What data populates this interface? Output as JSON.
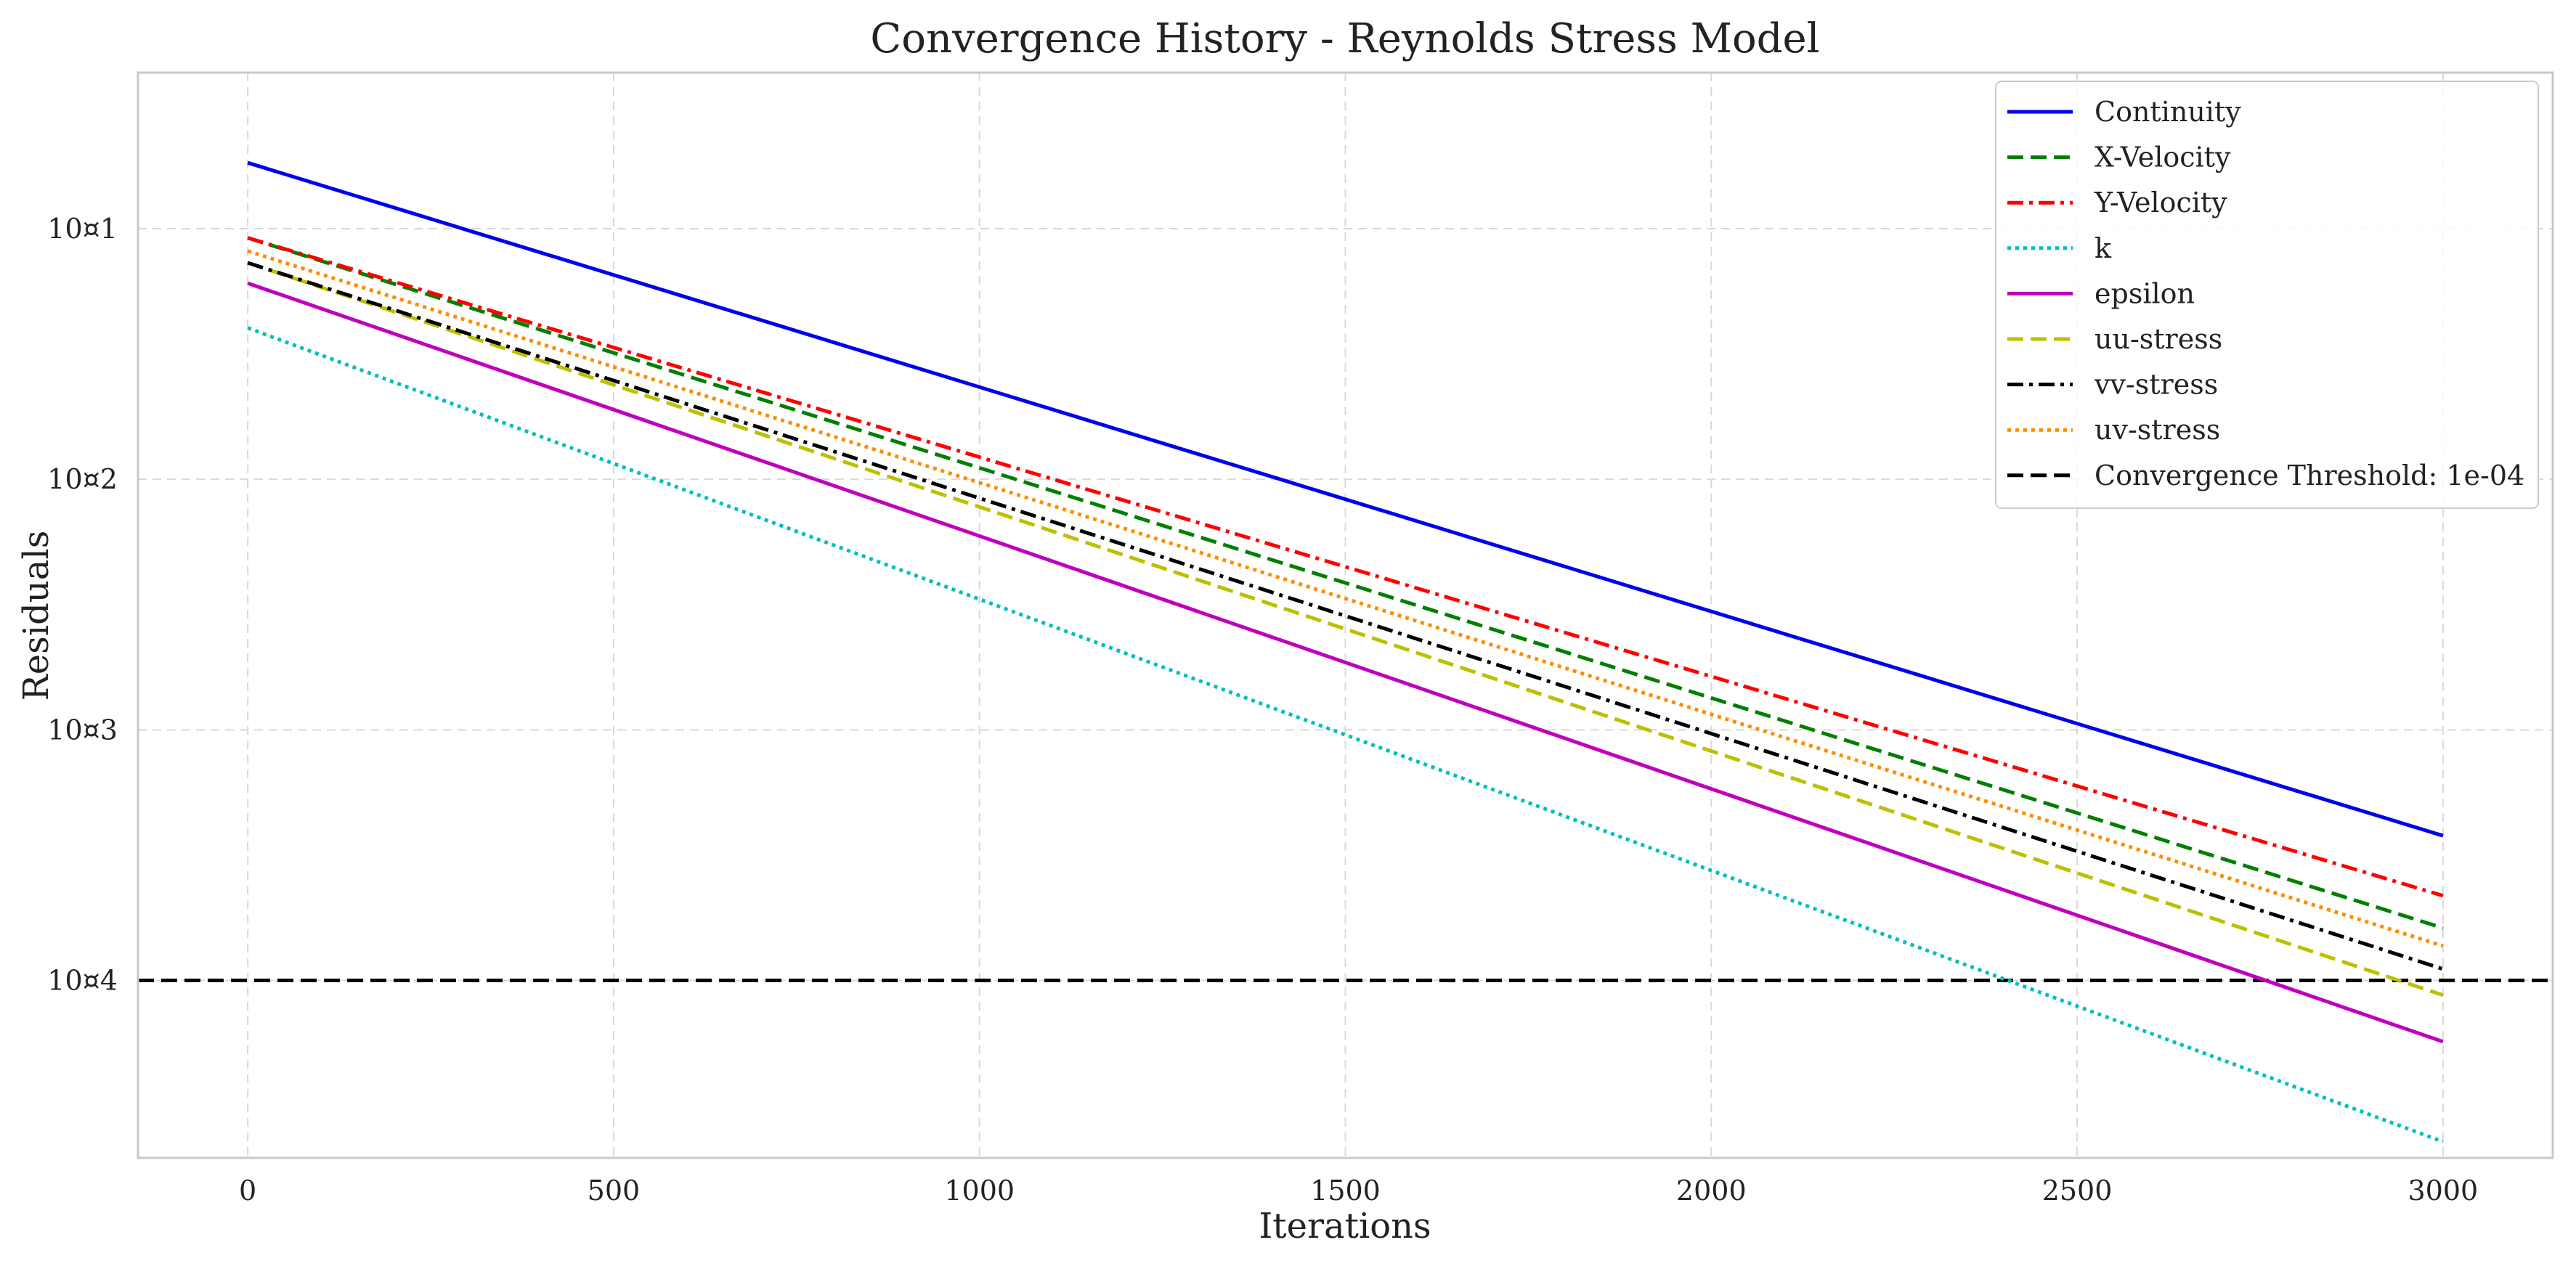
{
  "chart_data": {
    "type": "line",
    "title": "Convergence History - Reynolds Stress Model",
    "xlabel": "Iterations",
    "ylabel": "Residuals",
    "yscale": "log",
    "xlim": [
      -150,
      3150
    ],
    "ylim": [
      1.53e-05,
      0.000308
    ],
    "x_ticks": [
      0,
      500,
      1000,
      1500,
      2000,
      2500,
      3000
    ],
    "x_tick_labels": [
      "0",
      "500",
      "1000",
      "1500",
      "2000",
      "2500",
      "3000"
    ],
    "y_ticks": [
      0.0002,
      0.0001,
      5e-05,
      2.5e-05
    ],
    "y_tick_labels": [
      "10¤1",
      "10¤2",
      "10¤3",
      "10¤4"
    ],
    "grid": true,
    "legend_position": "top-right",
    "x": [
      0,
      3000
    ],
    "series": [
      {
        "name": "Continuity",
        "color": "#0000ee",
        "dash": "solid",
        "values": [
          0.00024,
          3.73e-05
        ]
      },
      {
        "name": "X-Velocity",
        "color": "#007f00",
        "dash": "dashed",
        "values": [
          0.000195,
          2.89e-05
        ]
      },
      {
        "name": "Y-Velocity",
        "color": "#ff0000",
        "dash": "dashdot",
        "values": [
          0.000195,
          3.16e-05
        ]
      },
      {
        "name": "k",
        "color": "#00bfbf",
        "dash": "dotted",
        "values": [
          0.000152,
          1.6e-05
        ]
      },
      {
        "name": "epsilon",
        "color": "#bf00bf",
        "dash": "solid",
        "values": [
          0.000172,
          2.11e-05
        ]
      },
      {
        "name": "uu-stress",
        "color": "#bfbf00",
        "dash": "dashed",
        "values": [
          0.000182,
          2.4e-05
        ]
      },
      {
        "name": "vv-stress",
        "color": "#000000",
        "dash": "dashdot",
        "values": [
          0.000182,
          2.58e-05
        ]
      },
      {
        "name": "uv-stress",
        "color": "#ff8c00",
        "dash": "dotted",
        "values": [
          0.000188,
          2.75e-05
        ]
      }
    ],
    "threshold": {
      "label": "Convergence Threshold: 1e-04",
      "value": 2.5e-05,
      "color": "#000000",
      "dash": "dashed"
    }
  }
}
